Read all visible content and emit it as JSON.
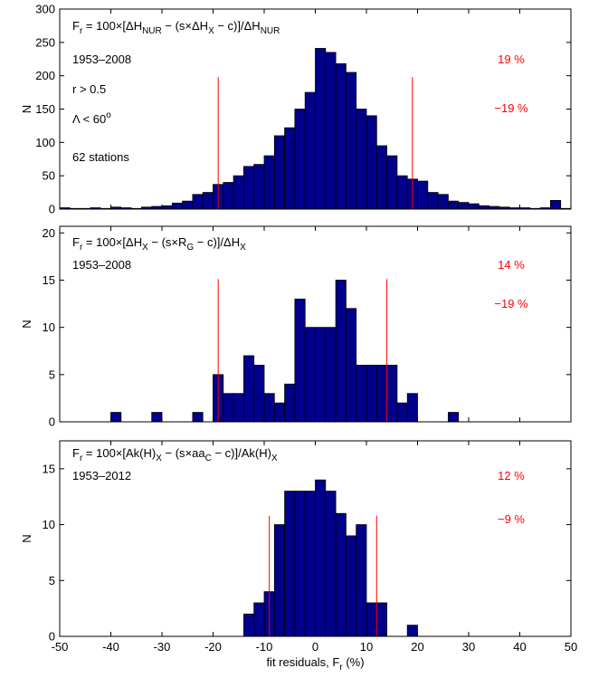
{
  "chart_data": [
    {
      "type": "histogram",
      "ylabel": "N",
      "bins": [
        -50,
        -48,
        -46,
        -44,
        -42,
        -40,
        -38,
        -36,
        -34,
        -32,
        -30,
        -28,
        -26,
        -24,
        -22,
        -20,
        -18,
        -16,
        -14,
        -12,
        -10,
        -8,
        -6,
        -4,
        -2,
        0,
        2,
        4,
        6,
        8,
        10,
        12,
        14,
        16,
        18,
        20,
        22,
        24,
        26,
        28,
        30,
        32,
        34,
        36,
        38,
        40,
        42,
        44,
        46,
        48,
        50
      ],
      "counts": [
        2,
        1,
        1,
        2,
        1,
        3,
        2,
        1,
        3,
        4,
        5,
        9,
        12,
        22,
        25,
        37,
        40,
        50,
        64,
        67,
        80,
        110,
        122,
        150,
        175,
        241,
        235,
        218,
        205,
        150,
        140,
        95,
        80,
        50,
        45,
        42,
        25,
        22,
        12,
        10,
        8,
        5,
        4,
        3,
        2,
        2,
        1,
        2,
        13,
        1
      ],
      "color": "#00008b",
      "xlim": [
        -50,
        50
      ],
      "xticks": [
        -50,
        -40,
        -30,
        -20,
        -10,
        0,
        10,
        20,
        30,
        40,
        50
      ],
      "show_xtick_labels": false,
      "ylim": [
        0,
        300
      ],
      "yticks": [
        0,
        50,
        100,
        150,
        200,
        250,
        300
      ],
      "annotations": [
        [
          {
            "text": "F"
          },
          {
            "sub": "r"
          },
          {
            "text": " = 100×[ΔH"
          },
          {
            "sub": "NUR"
          },
          {
            "text": " − (s×ΔH"
          },
          {
            "sub": "X"
          },
          {
            "text": " − c)]/ΔH"
          },
          {
            "sub": "NUR"
          }
        ],
        [
          {
            "text": "1953–2008"
          }
        ],
        [
          {
            "text": "r > 0.5"
          }
        ],
        [
          {
            "text": "Λ < 60"
          },
          {
            "sup": "o"
          }
        ],
        [
          {
            "text": "62 stations"
          }
        ]
      ],
      "vline_color": "#ff0000",
      "vline_ymax": 198,
      "vlines": [
        {
          "value": 19,
          "label": "19 %"
        },
        {
          "value": -19,
          "label": "−19 %"
        }
      ]
    },
    {
      "type": "histogram",
      "ylabel": "N",
      "bins": [
        -50,
        -48,
        -46,
        -44,
        -42,
        -40,
        -38,
        -36,
        -34,
        -32,
        -30,
        -28,
        -26,
        -24,
        -22,
        -20,
        -18,
        -16,
        -14,
        -12,
        -10,
        -8,
        -6,
        -4,
        -2,
        0,
        2,
        4,
        6,
        8,
        10,
        12,
        14,
        16,
        18,
        20,
        22,
        24,
        26,
        28,
        30,
        32,
        34,
        36,
        38,
        40,
        42,
        44,
        46,
        48,
        50
      ],
      "counts": [
        0,
        0,
        0,
        0,
        0,
        1,
        0,
        0,
        0,
        1,
        0,
        0,
        0,
        1,
        0,
        5,
        3,
        3,
        7,
        6,
        3,
        2,
        4,
        13,
        10,
        10,
        10,
        15,
        12,
        6,
        6,
        6,
        6,
        2,
        3,
        0,
        0,
        0,
        1,
        0,
        0,
        0,
        0,
        0,
        0,
        0,
        0,
        0,
        0,
        0
      ],
      "color": "#00008b",
      "xlim": [
        -50,
        50
      ],
      "xticks": [
        -50,
        -40,
        -30,
        -20,
        -10,
        0,
        10,
        20,
        30,
        40,
        50
      ],
      "show_xtick_labels": false,
      "ylim": [
        0,
        20.7
      ],
      "yticks": [
        0,
        5,
        10,
        15,
        20
      ],
      "annotations": [
        [
          {
            "text": "F"
          },
          {
            "sub": "r"
          },
          {
            "text": " = 100×[ΔH"
          },
          {
            "sub": "X"
          },
          {
            "text": " − (s×R"
          },
          {
            "sub": "G"
          },
          {
            "text": " − c)]/ΔH"
          },
          {
            "sub": "X"
          }
        ],
        [
          {
            "text": "1953–2008"
          }
        ]
      ],
      "vline_color": "#ff0000",
      "vline_ymax": 15.1,
      "vlines": [
        {
          "value": 14,
          "label": "14 %"
        },
        {
          "value": -19,
          "label": "−19 %"
        }
      ]
    },
    {
      "type": "histogram",
      "ylabel": "N",
      "xlabel": [
        {
          "text": "fit residuals, F"
        },
        {
          "sub": "r"
        },
        {
          "text": " (%)"
        }
      ],
      "bins": [
        -50,
        -48,
        -46,
        -44,
        -42,
        -40,
        -38,
        -36,
        -34,
        -32,
        -30,
        -28,
        -26,
        -24,
        -22,
        -20,
        -18,
        -16,
        -14,
        -12,
        -10,
        -8,
        -6,
        -4,
        -2,
        0,
        2,
        4,
        6,
        8,
        10,
        12,
        14,
        16,
        18,
        20,
        22,
        24,
        26,
        28,
        30,
        32,
        34,
        36,
        38,
        40,
        42,
        44,
        46,
        48,
        50
      ],
      "counts": [
        0,
        0,
        0,
        0,
        0,
        0,
        0,
        0,
        0,
        0,
        0,
        0,
        0,
        0,
        0,
        0,
        0,
        0,
        2,
        3,
        4,
        10,
        13,
        13,
        13,
        14,
        13,
        11,
        9,
        10,
        3,
        3,
        0,
        0,
        1,
        0,
        0,
        0,
        0,
        0,
        0,
        0,
        0,
        0,
        0,
        0,
        0,
        0,
        0,
        0
      ],
      "color": "#00008b",
      "xlim": [
        -50,
        50
      ],
      "xticks": [
        -50,
        -40,
        -30,
        -20,
        -10,
        0,
        10,
        20,
        30,
        40,
        50
      ],
      "show_xtick_labels": true,
      "ylim": [
        0,
        17.5
      ],
      "yticks": [
        0,
        5,
        10,
        15
      ],
      "annotations": [
        [
          {
            "text": "F"
          },
          {
            "sub": "r"
          },
          {
            "text": " = 100×[Ak(H)"
          },
          {
            "sub": "X"
          },
          {
            "text": " − (s×aa"
          },
          {
            "sub": "C"
          },
          {
            "text": " − c)]/Ak(H)"
          },
          {
            "sub": "X"
          }
        ],
        [
          {
            "text": "1953–2012"
          }
        ]
      ],
      "vline_color": "#ff0000",
      "vline_ymax": 10.8,
      "vlines": [
        {
          "value": 12,
          "label": "12 %"
        },
        {
          "value": -9,
          "label": "−9 %"
        }
      ]
    }
  ]
}
